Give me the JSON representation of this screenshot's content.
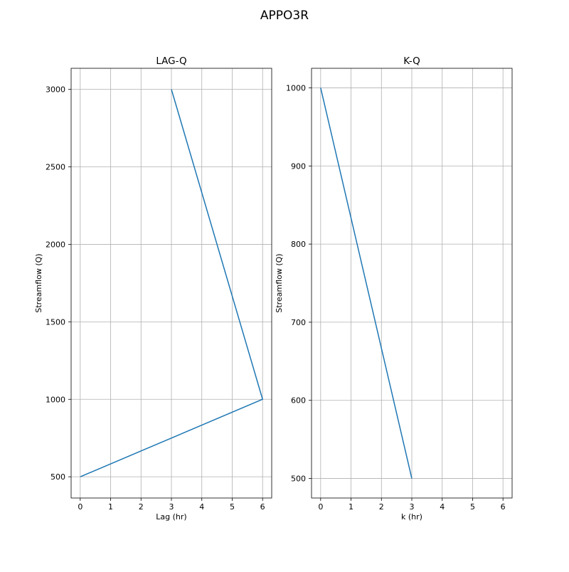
{
  "figure": {
    "title": "APPO3R"
  },
  "chart_data": [
    {
      "type": "line",
      "title": "LAG-Q",
      "xlabel": "Lag (hr)",
      "ylabel": "Streamflow (Q)",
      "xlim": [
        -0.3,
        6.3
      ],
      "ylim": [
        363,
        3136
      ],
      "xticks": [
        0,
        1,
        2,
        3,
        4,
        5,
        6
      ],
      "yticks": [
        500,
        1000,
        1500,
        2000,
        2500,
        3000
      ],
      "grid": true,
      "series": [
        {
          "color": "#1f77b4",
          "x": [
            0,
            6,
            3
          ],
          "y": [
            500,
            1000,
            3000
          ]
        }
      ]
    },
    {
      "type": "line",
      "title": "K-Q",
      "xlabel": "k (hr)",
      "ylabel": "Streamflow (Q)",
      "xlim": [
        -0.3,
        6.3
      ],
      "ylim": [
        475,
        1025
      ],
      "xticks": [
        0,
        1,
        2,
        3,
        4,
        5,
        6
      ],
      "yticks": [
        500,
        600,
        700,
        800,
        900,
        1000
      ],
      "grid": true,
      "series": [
        {
          "color": "#1f77b4",
          "x": [
            0,
            3
          ],
          "y": [
            1000,
            500
          ]
        }
      ]
    }
  ]
}
